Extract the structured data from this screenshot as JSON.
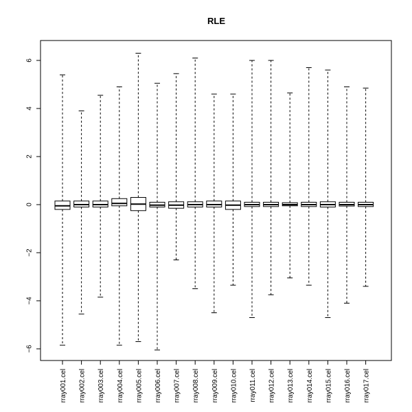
{
  "chart_data": {
    "type": "boxplot",
    "title": "RLE",
    "xlabel": "",
    "ylabel": "",
    "ylim": [
      -6.3,
      6.8
    ],
    "yticks": [
      -6,
      -4,
      -2,
      0,
      2,
      4,
      6
    ],
    "ytick_labels": [
      "−6",
      "−4",
      "−2",
      "0",
      "2",
      "4",
      "6"
    ],
    "grid": false,
    "categories": [
      "rray001.cel",
      "rray002.cel",
      "rray003.cel",
      "rray004.cel",
      "rray005.cel",
      "rray006.cel",
      "rray007.cel",
      "rray008.cel",
      "rray009.cel",
      "rray010.cel",
      "rray011.cel",
      "rray012.cel",
      "rray013.cel",
      "rray014.cel",
      "rray015.cel",
      "rray016.cel",
      "rray017.cel"
    ],
    "boxes": [
      {
        "min": -5.85,
        "q1": -0.2,
        "median": -0.05,
        "q3": 0.15,
        "max": 5.4
      },
      {
        "min": -4.55,
        "q1": -0.1,
        "median": 0.0,
        "q3": 0.15,
        "max": 3.9
      },
      {
        "min": -3.85,
        "q1": -0.1,
        "median": 0.0,
        "q3": 0.15,
        "max": 4.55
      },
      {
        "min": -5.85,
        "q1": -0.05,
        "median": 0.05,
        "q3": 0.25,
        "max": 4.9
      },
      {
        "min": -5.7,
        "q1": -0.25,
        "median": 0.02,
        "q3": 0.3,
        "max": 6.3
      },
      {
        "min": -6.05,
        "q1": -0.1,
        "median": -0.02,
        "q3": 0.1,
        "max": 5.05
      },
      {
        "min": -2.3,
        "q1": -0.15,
        "median": -0.02,
        "q3": 0.12,
        "max": 5.45
      },
      {
        "min": -3.5,
        "q1": -0.1,
        "median": 0.0,
        "q3": 0.12,
        "max": 6.1
      },
      {
        "min": -4.5,
        "q1": -0.1,
        "median": 0.0,
        "q3": 0.15,
        "max": 4.6
      },
      {
        "min": -3.35,
        "q1": -0.2,
        "median": -0.02,
        "q3": 0.15,
        "max": 4.6
      },
      {
        "min": -4.7,
        "q1": -0.08,
        "median": 0.0,
        "q3": 0.1,
        "max": 6.0
      },
      {
        "min": -3.75,
        "q1": -0.08,
        "median": 0.0,
        "q3": 0.1,
        "max": 6.0
      },
      {
        "min": -3.05,
        "q1": -0.05,
        "median": 0.0,
        "q3": 0.08,
        "max": 4.65
      },
      {
        "min": -3.35,
        "q1": -0.08,
        "median": 0.0,
        "q3": 0.1,
        "max": 5.7
      },
      {
        "min": -4.7,
        "q1": -0.1,
        "median": 0.0,
        "q3": 0.12,
        "max": 5.6
      },
      {
        "min": -4.1,
        "q1": -0.06,
        "median": 0.0,
        "q3": 0.1,
        "max": 4.9
      },
      {
        "min": -3.4,
        "q1": -0.08,
        "median": 0.0,
        "q3": 0.1,
        "max": 4.85
      }
    ],
    "colors": {
      "box_fill": "#ffffff",
      "stroke": "#000000",
      "background": "#ffffff"
    }
  }
}
